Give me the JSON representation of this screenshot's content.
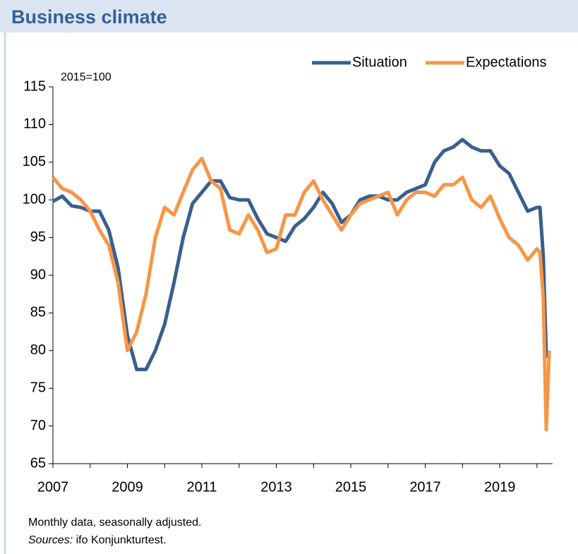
{
  "chart_data": {
    "type": "line",
    "title": "Business climate",
    "unit_label": "2015=100",
    "x": [
      2007.0,
      2007.25,
      2007.5,
      2007.75,
      2008.0,
      2008.25,
      2008.5,
      2008.75,
      2009.0,
      2009.25,
      2009.5,
      2009.75,
      2010.0,
      2010.25,
      2010.5,
      2010.75,
      2011.0,
      2011.25,
      2011.5,
      2011.75,
      2012.0,
      2012.25,
      2012.5,
      2012.75,
      2013.0,
      2013.25,
      2013.5,
      2013.75,
      2014.0,
      2014.25,
      2014.5,
      2014.75,
      2015.0,
      2015.25,
      2015.5,
      2015.75,
      2016.0,
      2016.25,
      2016.5,
      2016.75,
      2017.0,
      2017.25,
      2017.5,
      2017.75,
      2018.0,
      2018.25,
      2018.5,
      2018.75,
      2019.0,
      2019.25,
      2019.5,
      2019.75,
      2020.0,
      2020.08,
      2020.17,
      2020.25,
      2020.33
    ],
    "series": [
      {
        "name": "Situation",
        "color": "#3a5f8f",
        "values": [
          99.8,
          100.5,
          99.2,
          99,
          98.5,
          98.5,
          96,
          91,
          82,
          77.5,
          77.5,
          80,
          83.5,
          89,
          95,
          99.5,
          101,
          102.5,
          102.5,
          100.3,
          100,
          100,
          97.5,
          95.5,
          95,
          94.5,
          96.5,
          97.5,
          99,
          101,
          99.5,
          97,
          98,
          100,
          100.5,
          100.5,
          100,
          100,
          101,
          101.5,
          102,
          105,
          106.5,
          107,
          108,
          107,
          106.5,
          106.5,
          104.5,
          103.5,
          101,
          98.5,
          99,
          99,
          92.5,
          79.5,
          79
        ]
      },
      {
        "name": "Expectations",
        "color": "#f79646",
        "values": [
          103,
          101.5,
          101,
          100,
          98.5,
          96,
          94,
          89,
          80,
          82.5,
          87.5,
          95,
          99,
          98,
          101,
          104,
          105.5,
          102.5,
          101.5,
          96,
          95.5,
          98,
          96,
          93,
          93.5,
          98,
          98,
          101,
          102.5,
          100,
          98,
          96,
          98,
          99.5,
          100,
          100.5,
          101,
          98,
          100,
          101,
          101,
          100.5,
          102,
          102,
          103,
          100,
          99,
          100.5,
          97.5,
          95,
          94,
          92,
          93.5,
          93,
          87,
          69.5,
          80
        ]
      }
    ],
    "xlim": [
      2007,
      2020.42
    ],
    "xticks": [
      2007,
      2009,
      2011,
      2013,
      2015,
      2017,
      2019
    ],
    "xminorticks": [
      2008,
      2010,
      2012,
      2014,
      2016,
      2018,
      2020
    ],
    "ylim": [
      65,
      115
    ],
    "yticks": [
      65,
      70,
      75,
      80,
      85,
      90,
      95,
      100,
      105,
      110,
      115
    ],
    "legend": "top-right",
    "footnote": "Monthly data, seasonally adjusted.",
    "source_label": "Sources:",
    "source": "ifo Konjunkturtest."
  }
}
